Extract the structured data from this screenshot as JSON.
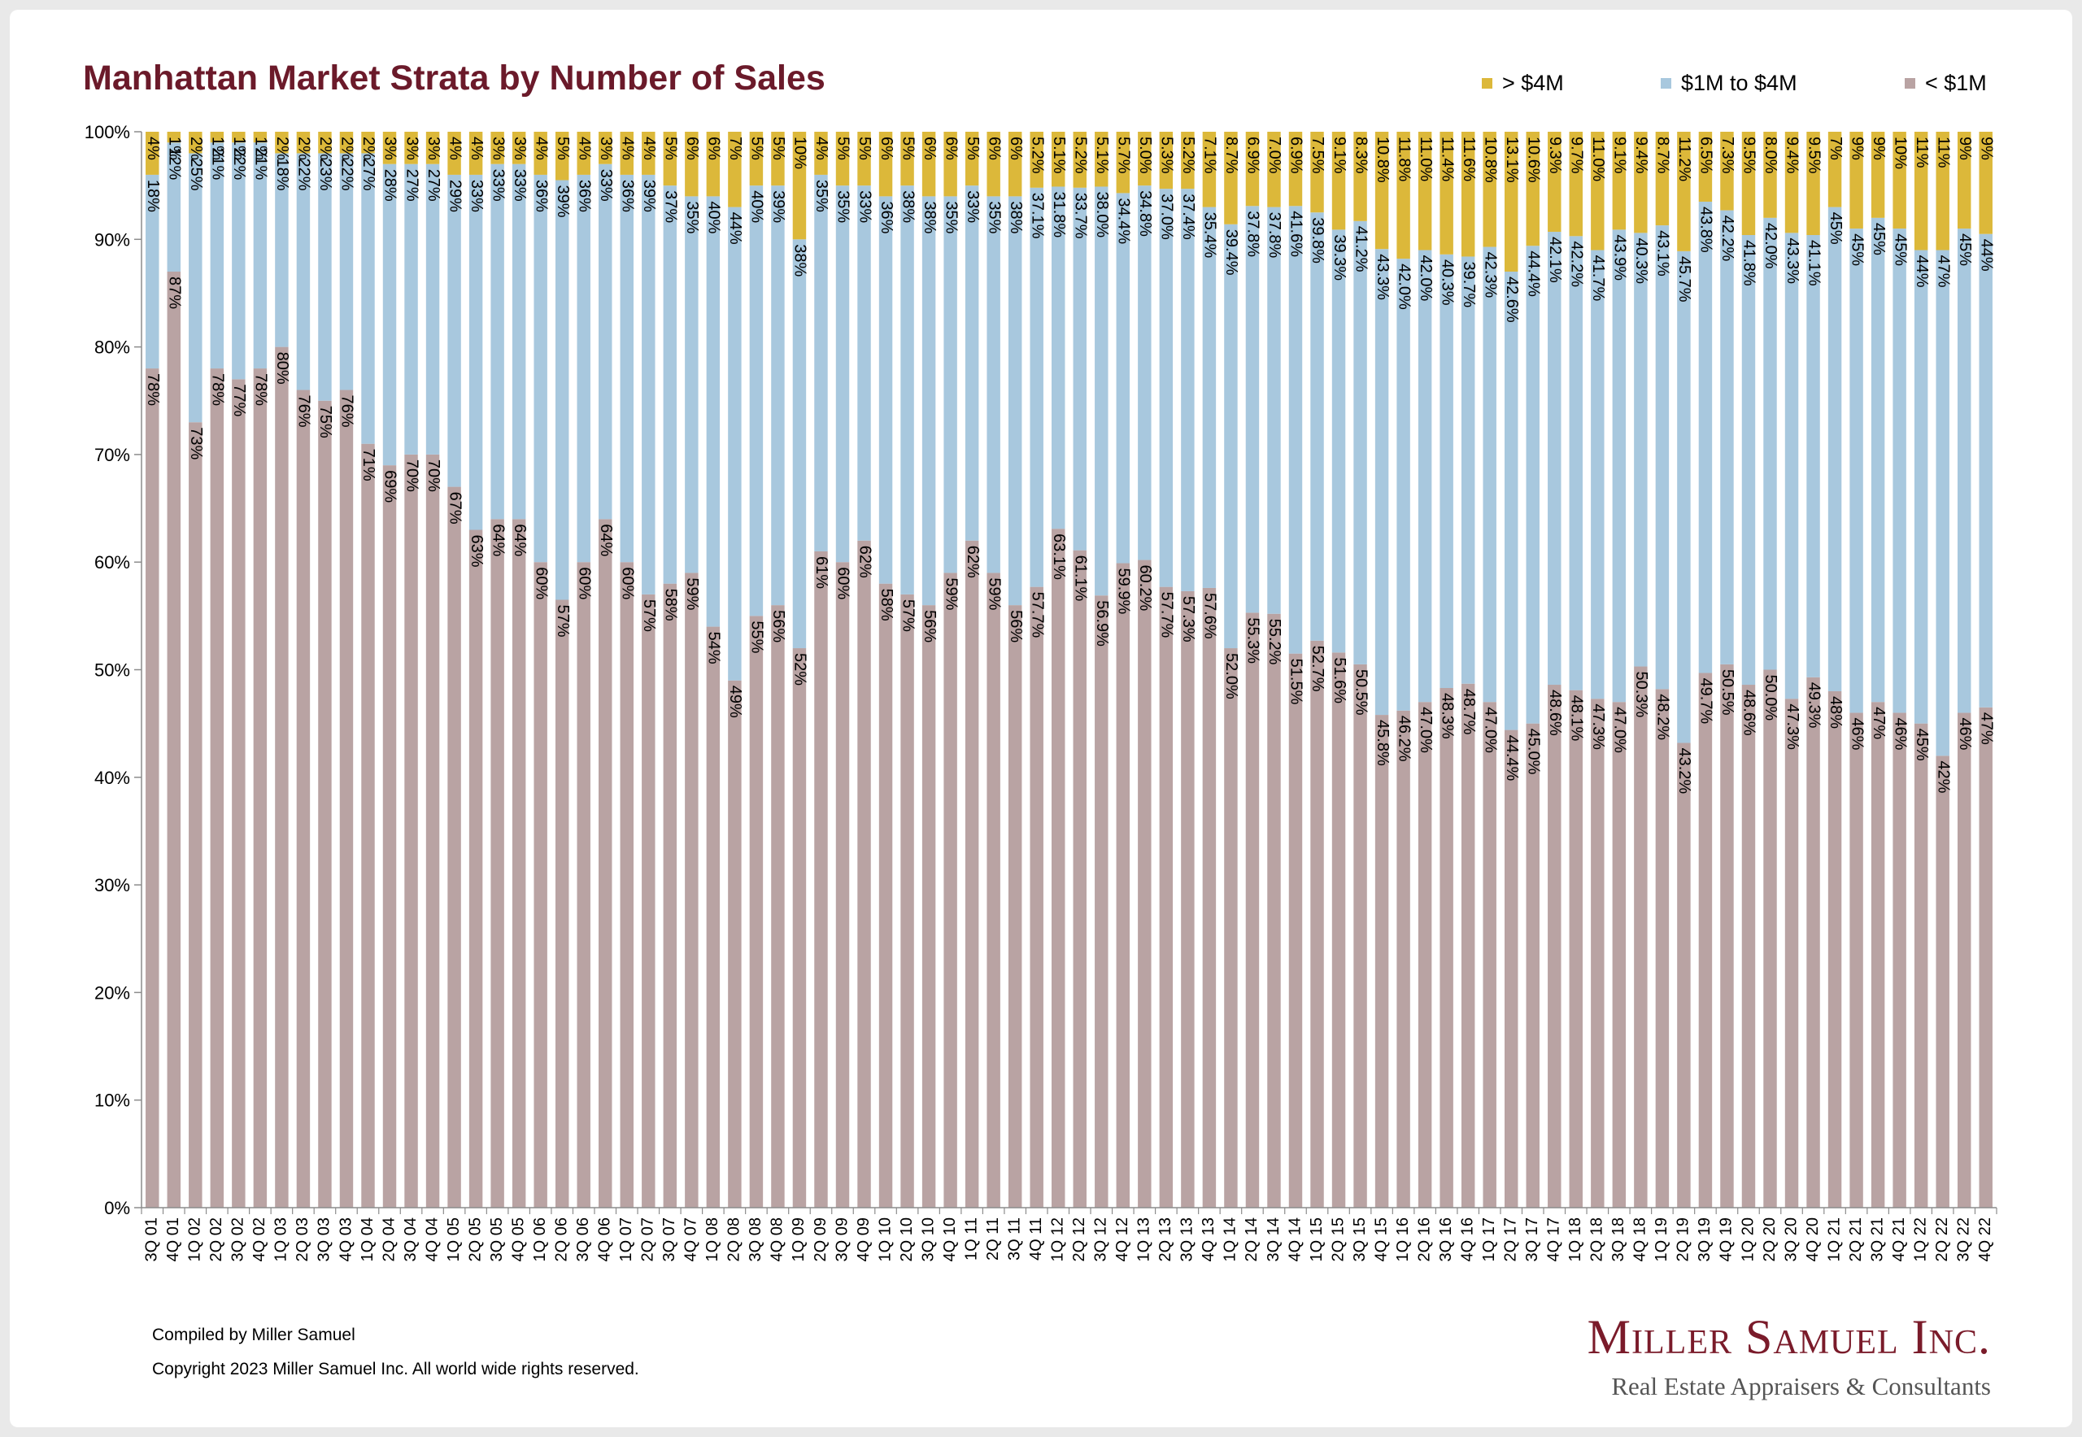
{
  "chart_data": {
    "type": "bar",
    "stacked": true,
    "title": "Manhattan Market Strata by Number of Sales",
    "xlabel": "",
    "ylabel": "",
    "ylim": [
      0,
      100
    ],
    "y_ticks": [
      "0%",
      "10%",
      "20%",
      "30%",
      "40%",
      "50%",
      "60%",
      "70%",
      "80%",
      "90%",
      "100%"
    ],
    "legend_position": "top-right",
    "grid": false,
    "categories": [
      "3Q 01",
      "4Q 01",
      "1Q 02",
      "2Q 02",
      "3Q 02",
      "4Q 02",
      "1Q 03",
      "2Q 03",
      "3Q 03",
      "4Q 03",
      "1Q 04",
      "2Q 04",
      "3Q 04",
      "4Q 04",
      "1Q 05",
      "2Q 05",
      "3Q 05",
      "4Q 05",
      "1Q 06",
      "2Q 06",
      "3Q 06",
      "4Q 06",
      "1Q 07",
      "2Q 07",
      "3Q 07",
      "4Q 07",
      "1Q 08",
      "2Q 08",
      "3Q 08",
      "4Q 08",
      "1Q 09",
      "2Q 09",
      "3Q 09",
      "4Q 09",
      "1Q 10",
      "2Q 10",
      "3Q 10",
      "4Q 10",
      "1Q 11",
      "2Q 11",
      "3Q 11",
      "4Q 11",
      "1Q 12",
      "2Q 12",
      "3Q 12",
      "4Q 12",
      "1Q 13",
      "2Q 13",
      "3Q 13",
      "4Q 13",
      "1Q 14",
      "2Q 14",
      "3Q 14",
      "4Q 14",
      "1Q 15",
      "2Q 15",
      "3Q 15",
      "4Q 15",
      "1Q 16",
      "2Q 16",
      "3Q 16",
      "4Q 16",
      "1Q 17",
      "2Q 17",
      "3Q 17",
      "4Q 17",
      "1Q 18",
      "2Q 18",
      "3Q 18",
      "4Q 18",
      "1Q 19",
      "2Q 19",
      "3Q 19",
      "4Q 19",
      "1Q 20",
      "2Q 20",
      "3Q 20",
      "4Q 20",
      "1Q 21",
      "2Q 21",
      "3Q 21",
      "4Q 21",
      "1Q 22",
      "2Q 22",
      "3Q 22",
      "4Q 22"
    ],
    "series": [
      {
        "name": "< $1M",
        "color": "#b9a3a3",
        "values": [
          78,
          87,
          73,
          78,
          77,
          78,
          80,
          76,
          75,
          76,
          71,
          69,
          70,
          70,
          67,
          63,
          64,
          64,
          60,
          56.5,
          60,
          64,
          60,
          57,
          58,
          59,
          54,
          49,
          55,
          56,
          52,
          61,
          60,
          62,
          58,
          57,
          56,
          59,
          62,
          59,
          56,
          57.7,
          63.1,
          61.1,
          56.9,
          59.9,
          60.2,
          57.7,
          57.3,
          57.6,
          52.0,
          55.3,
          55.2,
          51.5,
          52.7,
          51.6,
          50.5,
          45.8,
          46.2,
          47.0,
          48.3,
          48.7,
          47.0,
          44.4,
          45.0,
          48.6,
          48.1,
          47.3,
          47.0,
          50.3,
          48.2,
          43.2,
          49.7,
          50.5,
          48.6,
          50.0,
          47.3,
          49.3,
          48,
          46,
          47,
          46,
          45,
          42,
          46,
          46.5
        ],
        "labels": [
          "78%",
          "87%",
          "73%",
          "78%",
          "77%",
          "78%",
          "80%",
          "76%",
          "75%",
          "76%",
          "71%",
          "69%",
          "70%",
          "70%",
          "67%",
          "63%",
          "64%",
          "64%",
          "60%",
          "57%",
          "60%",
          "64%",
          "60%",
          "57%",
          "58%",
          "59%",
          "54%",
          "49%",
          "55%",
          "56%",
          "52%",
          "61%",
          "60%",
          "62%",
          "58%",
          "57%",
          "56%",
          "59%",
          "62%",
          "59%",
          "56%",
          "57.7%",
          "63.1%",
          "61.1%",
          "56.9%",
          "59.9%",
          "60.2%",
          "57.7%",
          "57.3%",
          "57.6%",
          "52.0%",
          "55.3%",
          "55.2%",
          "51.5%",
          "52.7%",
          "51.6%",
          "50.5%",
          "45.8%",
          "46.2%",
          "47.0%",
          "48.3%",
          "48.7%",
          "47.0%",
          "44.4%",
          "45.0%",
          "48.6%",
          "48.1%",
          "47.3%",
          "47.0%",
          "50.3%",
          "48.2%",
          "43.2%",
          "49.7%",
          "50.5%",
          "48.6%",
          "50.0%",
          "47.3%",
          "49.3%",
          "48%",
          "46%",
          "47%",
          "46%",
          "45%",
          "42%",
          "46%",
          "47%"
        ]
      },
      {
        "name": "$1M to $4M",
        "color": "#a8c8de",
        "values": [
          18,
          12,
          25,
          21,
          22,
          21,
          18,
          22,
          23,
          22,
          27,
          28,
          27,
          27,
          29,
          33,
          33,
          33,
          36,
          39,
          36,
          33,
          36,
          39,
          37,
          35,
          40,
          44,
          40,
          39,
          38,
          35,
          35,
          33,
          36,
          38,
          38,
          35,
          33,
          35,
          38,
          37.1,
          31.8,
          33.7,
          38.0,
          34.4,
          34.8,
          37.0,
          37.4,
          35.4,
          39.4,
          37.8,
          37.8,
          41.6,
          39.8,
          39.3,
          41.2,
          43.3,
          42.0,
          42.0,
          40.3,
          39.7,
          42.3,
          42.6,
          44.4,
          42.1,
          42.2,
          41.7,
          43.9,
          40.3,
          43.1,
          45.7,
          43.8,
          42.2,
          41.8,
          42.0,
          43.3,
          41.1,
          45,
          45,
          45,
          45,
          44,
          47,
          45,
          44
        ],
        "labels": [
          "18%",
          "12%",
          "25%",
          "21%",
          "22%",
          "21%",
          "18%",
          "22%",
          "23%",
          "22%",
          "27%",
          "28%",
          "27%",
          "27%",
          "29%",
          "33%",
          "33%",
          "33%",
          "36%",
          "39%",
          "36%",
          "33%",
          "36%",
          "39%",
          "37%",
          "35%",
          "40%",
          "44%",
          "40%",
          "39%",
          "38%",
          "35%",
          "35%",
          "33%",
          "36%",
          "38%",
          "38%",
          "35%",
          "33%",
          "35%",
          "38%",
          "37.1%",
          "31.8%",
          "33.7%",
          "38.0%",
          "34.4%",
          "34.8%",
          "37.0%",
          "37.4%",
          "35.4%",
          "39.4%",
          "37.8%",
          "37.8%",
          "41.6%",
          "39.8%",
          "39.3%",
          "41.2%",
          "43.3%",
          "42.0%",
          "42.0%",
          "40.3%",
          "39.7%",
          "42.3%",
          "42.6%",
          "44.4%",
          "42.1%",
          "42.2%",
          "41.7%",
          "43.9%",
          "40.3%",
          "43.1%",
          "45.7%",
          "43.8%",
          "42.2%",
          "41.8%",
          "42.0%",
          "43.3%",
          "41.1%",
          "45%",
          "45%",
          "45%",
          "45%",
          "44%",
          "47%",
          "45%",
          "44%"
        ]
      },
      {
        "name": "> $4M",
        "color": "#dcb83a",
        "values": [
          4,
          1,
          2,
          1,
          1,
          1,
          2,
          2,
          2,
          2,
          2,
          3,
          3,
          3,
          4,
          4,
          3,
          3,
          4,
          5,
          4,
          3,
          4,
          4,
          5,
          6,
          6,
          7,
          5,
          5,
          10,
          4,
          5,
          5,
          6,
          5,
          6,
          6,
          5,
          6,
          6,
          5.2,
          5.1,
          5.2,
          5.1,
          5.7,
          5.0,
          5.3,
          5.2,
          7.1,
          8.7,
          6.9,
          7.0,
          6.9,
          7.5,
          9.1,
          8.3,
          10.8,
          11.8,
          11.0,
          11.4,
          11.6,
          10.8,
          13.1,
          10.6,
          9.3,
          9.7,
          11.0,
          9.1,
          9.4,
          8.7,
          11.2,
          6.5,
          7.3,
          9.5,
          8.0,
          9.4,
          9.5,
          7,
          9,
          9,
          10,
          11,
          11,
          9,
          9
        ],
        "labels": [
          "4%",
          "1%",
          "2%",
          "1%",
          "1%",
          "1%",
          "2%",
          "2%",
          "2%",
          "2%",
          "2%",
          "3%",
          "3%",
          "3%",
          "4%",
          "4%",
          "3%",
          "3%",
          "4%",
          "5%",
          "4%",
          "3%",
          "4%",
          "4%",
          "5%",
          "6%",
          "6%",
          "7%",
          "5%",
          "5%",
          "10%",
          "4%",
          "5%",
          "5%",
          "6%",
          "5%",
          "6%",
          "6%",
          "5%",
          "6%",
          "6%",
          "5.2%",
          "5.1%",
          "5.2%",
          "5.1%",
          "5.7%",
          "5.0%",
          "5.3%",
          "5.2%",
          "7.1%",
          "8.7%",
          "6.9%",
          "7.0%",
          "6.9%",
          "7.5%",
          "9.1%",
          "8.3%",
          "10.8%",
          "11.8%",
          "11.0%",
          "11.4%",
          "11.6%",
          "10.8%",
          "13.1%",
          "10.6%",
          "9.3%",
          "9.7%",
          "11.0%",
          "9.1%",
          "9.4%",
          "8.7%",
          "11.2%",
          "6.5%",
          "7.3%",
          "9.5%",
          "8.0%",
          "9.4%",
          "9.5%",
          "7%",
          "9%",
          "9%",
          "10%",
          "11%",
          "11%",
          "9%",
          "9%"
        ]
      }
    ]
  },
  "legend": {
    "items": [
      {
        "label": "> $4M",
        "color": "#dcb83a"
      },
      {
        "label": "$1M to $4M",
        "color": "#a8c8de"
      },
      {
        "label": "< $1M",
        "color": "#b9a3a3"
      }
    ]
  },
  "footer": {
    "compiled": "Compiled by Miller Samuel",
    "copyright": "Copyright 2023 Miller Samuel Inc.  All world wide rights reserved."
  },
  "logo": {
    "line1": "Miller Samuel Inc.",
    "line2": "Real Estate Appraisers & Consultants"
  }
}
